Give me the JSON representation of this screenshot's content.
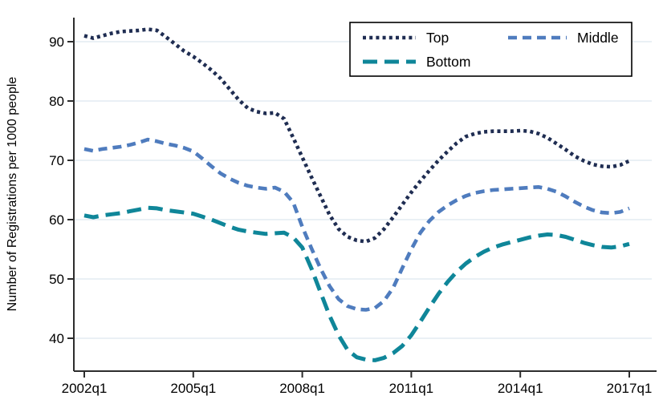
{
  "y_axis": {
    "label": "Number of Registrations per 1000 people",
    "ticks": [
      40,
      50,
      60,
      70,
      80,
      90
    ]
  },
  "x_axis": {
    "tick_labels": [
      "2002q1",
      "2005q1",
      "2008q1",
      "2011q1",
      "2014q1",
      "2017q1"
    ],
    "tick_quarters": [
      0,
      12,
      24,
      36,
      48,
      60
    ]
  },
  "legend": {
    "position": "top-right",
    "background": "#ffffff",
    "border_color": "#000000",
    "entries": [
      {
        "label": "Top"
      },
      {
        "label": "Middle"
      },
      {
        "label": "Bottom"
      }
    ]
  },
  "colors": {
    "gridline": "#e4ecf2",
    "axis": "#2d2d2d",
    "text": "#000000",
    "background": "#ffffff"
  },
  "chart_data": {
    "type": "line",
    "title": "",
    "xlabel": "",
    "ylabel": "Number of Registrations per 1000 people",
    "x_unit": "quarter",
    "x_start": "2002q1",
    "x_end": "2017q1",
    "x_tick_labels": [
      "2002q1",
      "2005q1",
      "2008q1",
      "2011q1",
      "2014q1",
      "2017q1"
    ],
    "ylim": [
      34.5,
      94.2
    ],
    "y_ticks": [
      40,
      50,
      60,
      70,
      80,
      90
    ],
    "grid": "horizontal",
    "legend_position": "top-right-inside",
    "series": [
      {
        "name": "Top",
        "color": "#1f2d52",
        "dash": "dotted",
        "values": [
          91.0,
          90.6,
          91.0,
          91.4,
          91.7,
          91.8,
          91.9,
          92.1,
          91.9,
          90.8,
          89.6,
          88.4,
          87.5,
          86.4,
          85.2,
          83.8,
          82.0,
          80.2,
          78.8,
          78.2,
          77.9,
          78.0,
          77.0,
          73.8,
          70.5,
          67.2,
          64.0,
          60.8,
          58.4,
          57.1,
          56.5,
          56.3,
          56.9,
          58.4,
          60.4,
          62.5,
          64.6,
          66.5,
          68.3,
          70.0,
          71.5,
          72.9,
          74.0,
          74.5,
          74.8,
          74.9,
          74.9,
          74.9,
          75.0,
          74.9,
          74.5,
          73.8,
          72.8,
          71.8,
          70.7,
          69.9,
          69.3,
          69.0,
          68.9,
          69.2,
          69.9
        ]
      },
      {
        "name": "Middle",
        "color": "#4f7cbe",
        "dash": "dashed",
        "values": [
          71.9,
          71.6,
          71.9,
          72.1,
          72.3,
          72.6,
          73.0,
          73.5,
          73.2,
          72.8,
          72.5,
          72.1,
          71.5,
          70.3,
          69.0,
          67.8,
          66.9,
          66.2,
          65.7,
          65.4,
          65.2,
          65.4,
          64.7,
          62.9,
          58.8,
          55.2,
          51.8,
          48.8,
          46.6,
          45.4,
          44.9,
          44.8,
          45.1,
          46.3,
          48.5,
          51.8,
          55.0,
          57.8,
          59.8,
          61.3,
          62.4,
          63.3,
          64.0,
          64.5,
          64.8,
          65.0,
          65.1,
          65.2,
          65.3,
          65.4,
          65.5,
          65.2,
          64.7,
          63.9,
          63.0,
          62.2,
          61.6,
          61.2,
          61.1,
          61.3,
          61.9
        ]
      },
      {
        "name": "Bottom",
        "color": "#0f8699",
        "dash": "long-dash",
        "values": [
          60.7,
          60.4,
          60.7,
          60.9,
          61.1,
          61.4,
          61.7,
          62.0,
          61.9,
          61.6,
          61.4,
          61.2,
          61.0,
          60.5,
          60.0,
          59.4,
          58.8,
          58.3,
          58.0,
          57.8,
          57.6,
          57.7,
          57.8,
          57.0,
          55.3,
          51.8,
          47.8,
          43.8,
          40.5,
          38.0,
          36.8,
          36.4,
          36.3,
          36.7,
          37.5,
          38.7,
          40.5,
          42.8,
          45.2,
          47.5,
          49.5,
          51.2,
          52.6,
          53.7,
          54.6,
          55.3,
          55.8,
          56.2,
          56.6,
          57.0,
          57.3,
          57.5,
          57.4,
          57.1,
          56.6,
          56.1,
          55.7,
          55.4,
          55.3,
          55.5,
          55.9
        ]
      }
    ]
  }
}
